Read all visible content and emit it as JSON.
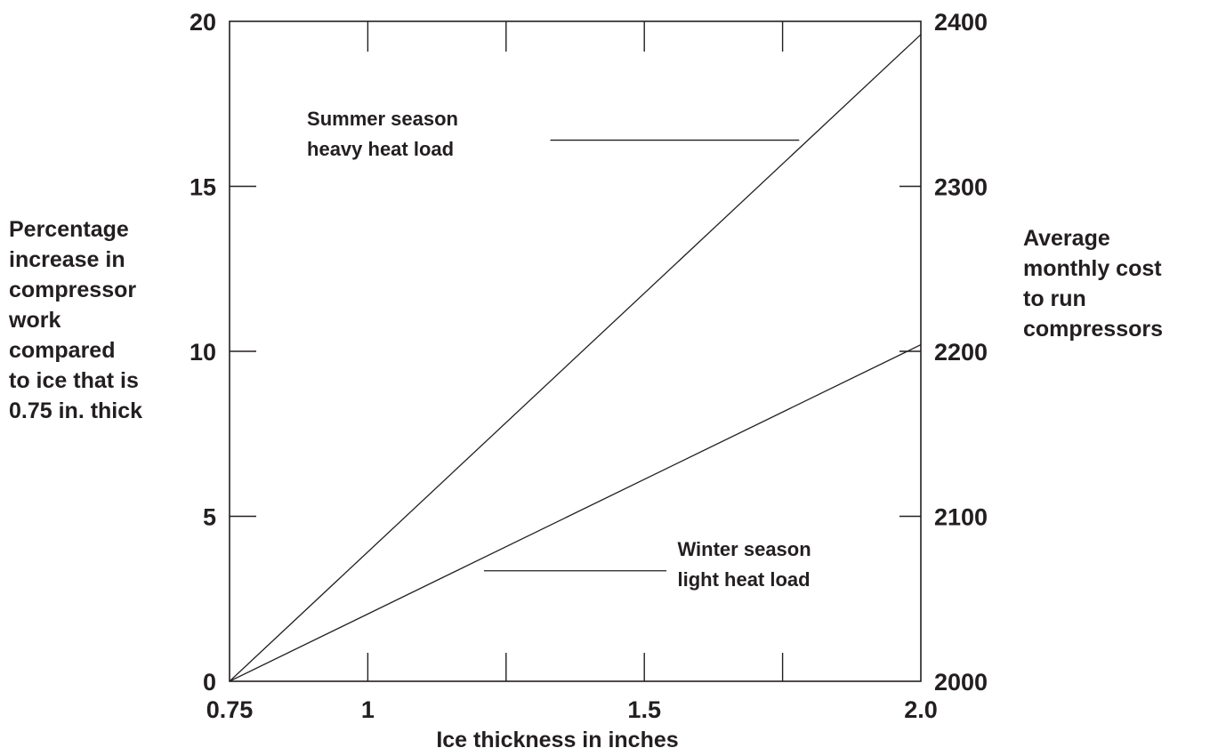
{
  "chart_data": {
    "type": "line",
    "title": "",
    "xlabel": "Ice thickness in inches",
    "ylabel_left": [
      "Percentage",
      "increase in",
      "compressor",
      "work",
      "compared",
      "to ice that is",
      "0.75 in. thick"
    ],
    "ylabel_right": [
      "Average",
      "monthly cost",
      "to run",
      "compressors"
    ],
    "xlim": [
      0.75,
      2.0
    ],
    "ylim": [
      0,
      20
    ],
    "y2lim": [
      2000,
      2400
    ],
    "x_ticks": [
      {
        "value": 0.75,
        "label": "0.75"
      },
      {
        "value": 1.0,
        "label": "1"
      },
      {
        "value": 1.25,
        "label": ""
      },
      {
        "value": 1.5,
        "label": "1.5"
      },
      {
        "value": 1.75,
        "label": ""
      },
      {
        "value": 2.0,
        "label": "2.0"
      }
    ],
    "y_ticks": [
      {
        "value": 0,
        "label": "0"
      },
      {
        "value": 5,
        "label": "5"
      },
      {
        "value": 10,
        "label": "10"
      },
      {
        "value": 15,
        "label": "15"
      },
      {
        "value": 20,
        "label": "20"
      }
    ],
    "y2_ticks": [
      {
        "value": 2000,
        "label": "2000"
      },
      {
        "value": 2100,
        "label": "2100"
      },
      {
        "value": 2200,
        "label": "2200"
      },
      {
        "value": 2300,
        "label": "2300"
      },
      {
        "value": 2400,
        "label": "2400"
      }
    ],
    "series": [
      {
        "x": [
          0.75,
          2.0
        ],
        "y": [
          0,
          19.6
        ]
      },
      {
        "x": [
          0.75,
          2.0
        ],
        "y": [
          0,
          10.2
        ]
      }
    ],
    "annotations": [
      {
        "lines": [
          "Summer season",
          "heavy heat load"
        ],
        "series_index": 0,
        "leader_from": [
          1.33,
          16.4
        ],
        "leader_to": [
          1.78,
          16.4
        ],
        "text_at": [
          0.89,
          16.85
        ]
      },
      {
        "lines": [
          "Winter season",
          "light heat load"
        ],
        "series_index": 1,
        "leader_from": [
          1.21,
          3.35
        ],
        "leader_to": [
          1.54,
          3.35
        ],
        "text_at": [
          1.56,
          3.8
        ]
      }
    ],
    "grid": false,
    "legend": "none"
  }
}
